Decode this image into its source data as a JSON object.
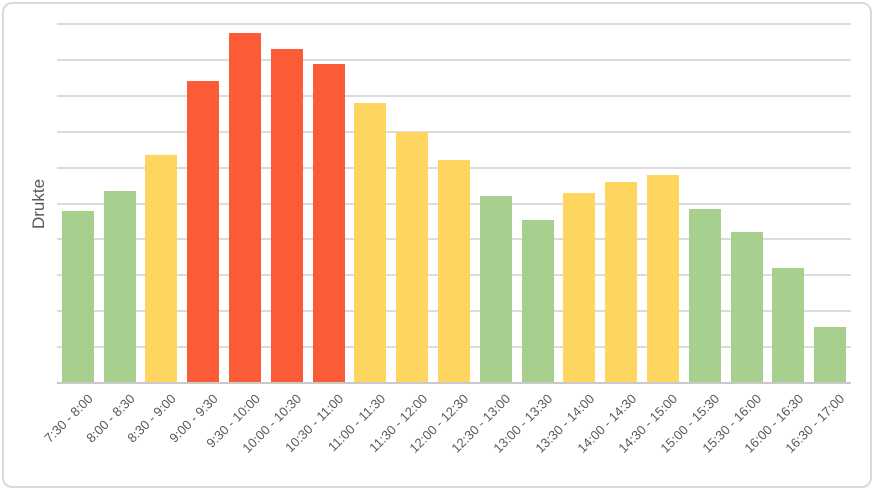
{
  "chart_data": {
    "type": "bar",
    "title": "",
    "xlabel": "",
    "ylabel": "Drukte",
    "ylim": [
      0,
      10
    ],
    "gridline_interval": 1,
    "grid": "horizontal",
    "legend_position": "none",
    "y_tick_labels_visible": false,
    "categories": [
      "7:30 - 8:00",
      "8:00 - 8:30",
      "8:30 - 9:00",
      "9:00 - 9:30",
      "9:30 - 10:00",
      "10:00 - 10:30",
      "10:30 - 11:00",
      "11:00 - 11:30",
      "11:30 - 12:00",
      "12:00 - 12:30",
      "12:30 - 13:00",
      "13:00 - 13:30",
      "13:30 - 14:00",
      "14:00 - 14:30",
      "14:30 - 15:00",
      "15:00 - 15:30",
      "15:30 - 16:00",
      "16:00 - 16:30",
      "16:30 - 17:00"
    ],
    "values": [
      4.8,
      5.35,
      6.35,
      8.4,
      9.75,
      9.3,
      8.9,
      7.8,
      7.0,
      6.2,
      5.2,
      4.55,
      5.3,
      5.6,
      5.8,
      4.85,
      4.2,
      3.2,
      1.55
    ],
    "bar_color_keys": [
      "green",
      "green",
      "yellow",
      "red",
      "red",
      "red",
      "red",
      "yellow",
      "yellow",
      "yellow",
      "green",
      "green",
      "yellow",
      "yellow",
      "yellow",
      "green",
      "green",
      "green",
      "green"
    ],
    "palette": {
      "green": "#a7cf8e",
      "yellow": "#fed55f",
      "red": "#fc5b37"
    },
    "colors": {
      "gridline": "#dcdcdc",
      "axis_line": "#c9c9c9",
      "label_text": "#595959",
      "frame_border": "#d9d9d9",
      "background": "#ffffff"
    }
  }
}
